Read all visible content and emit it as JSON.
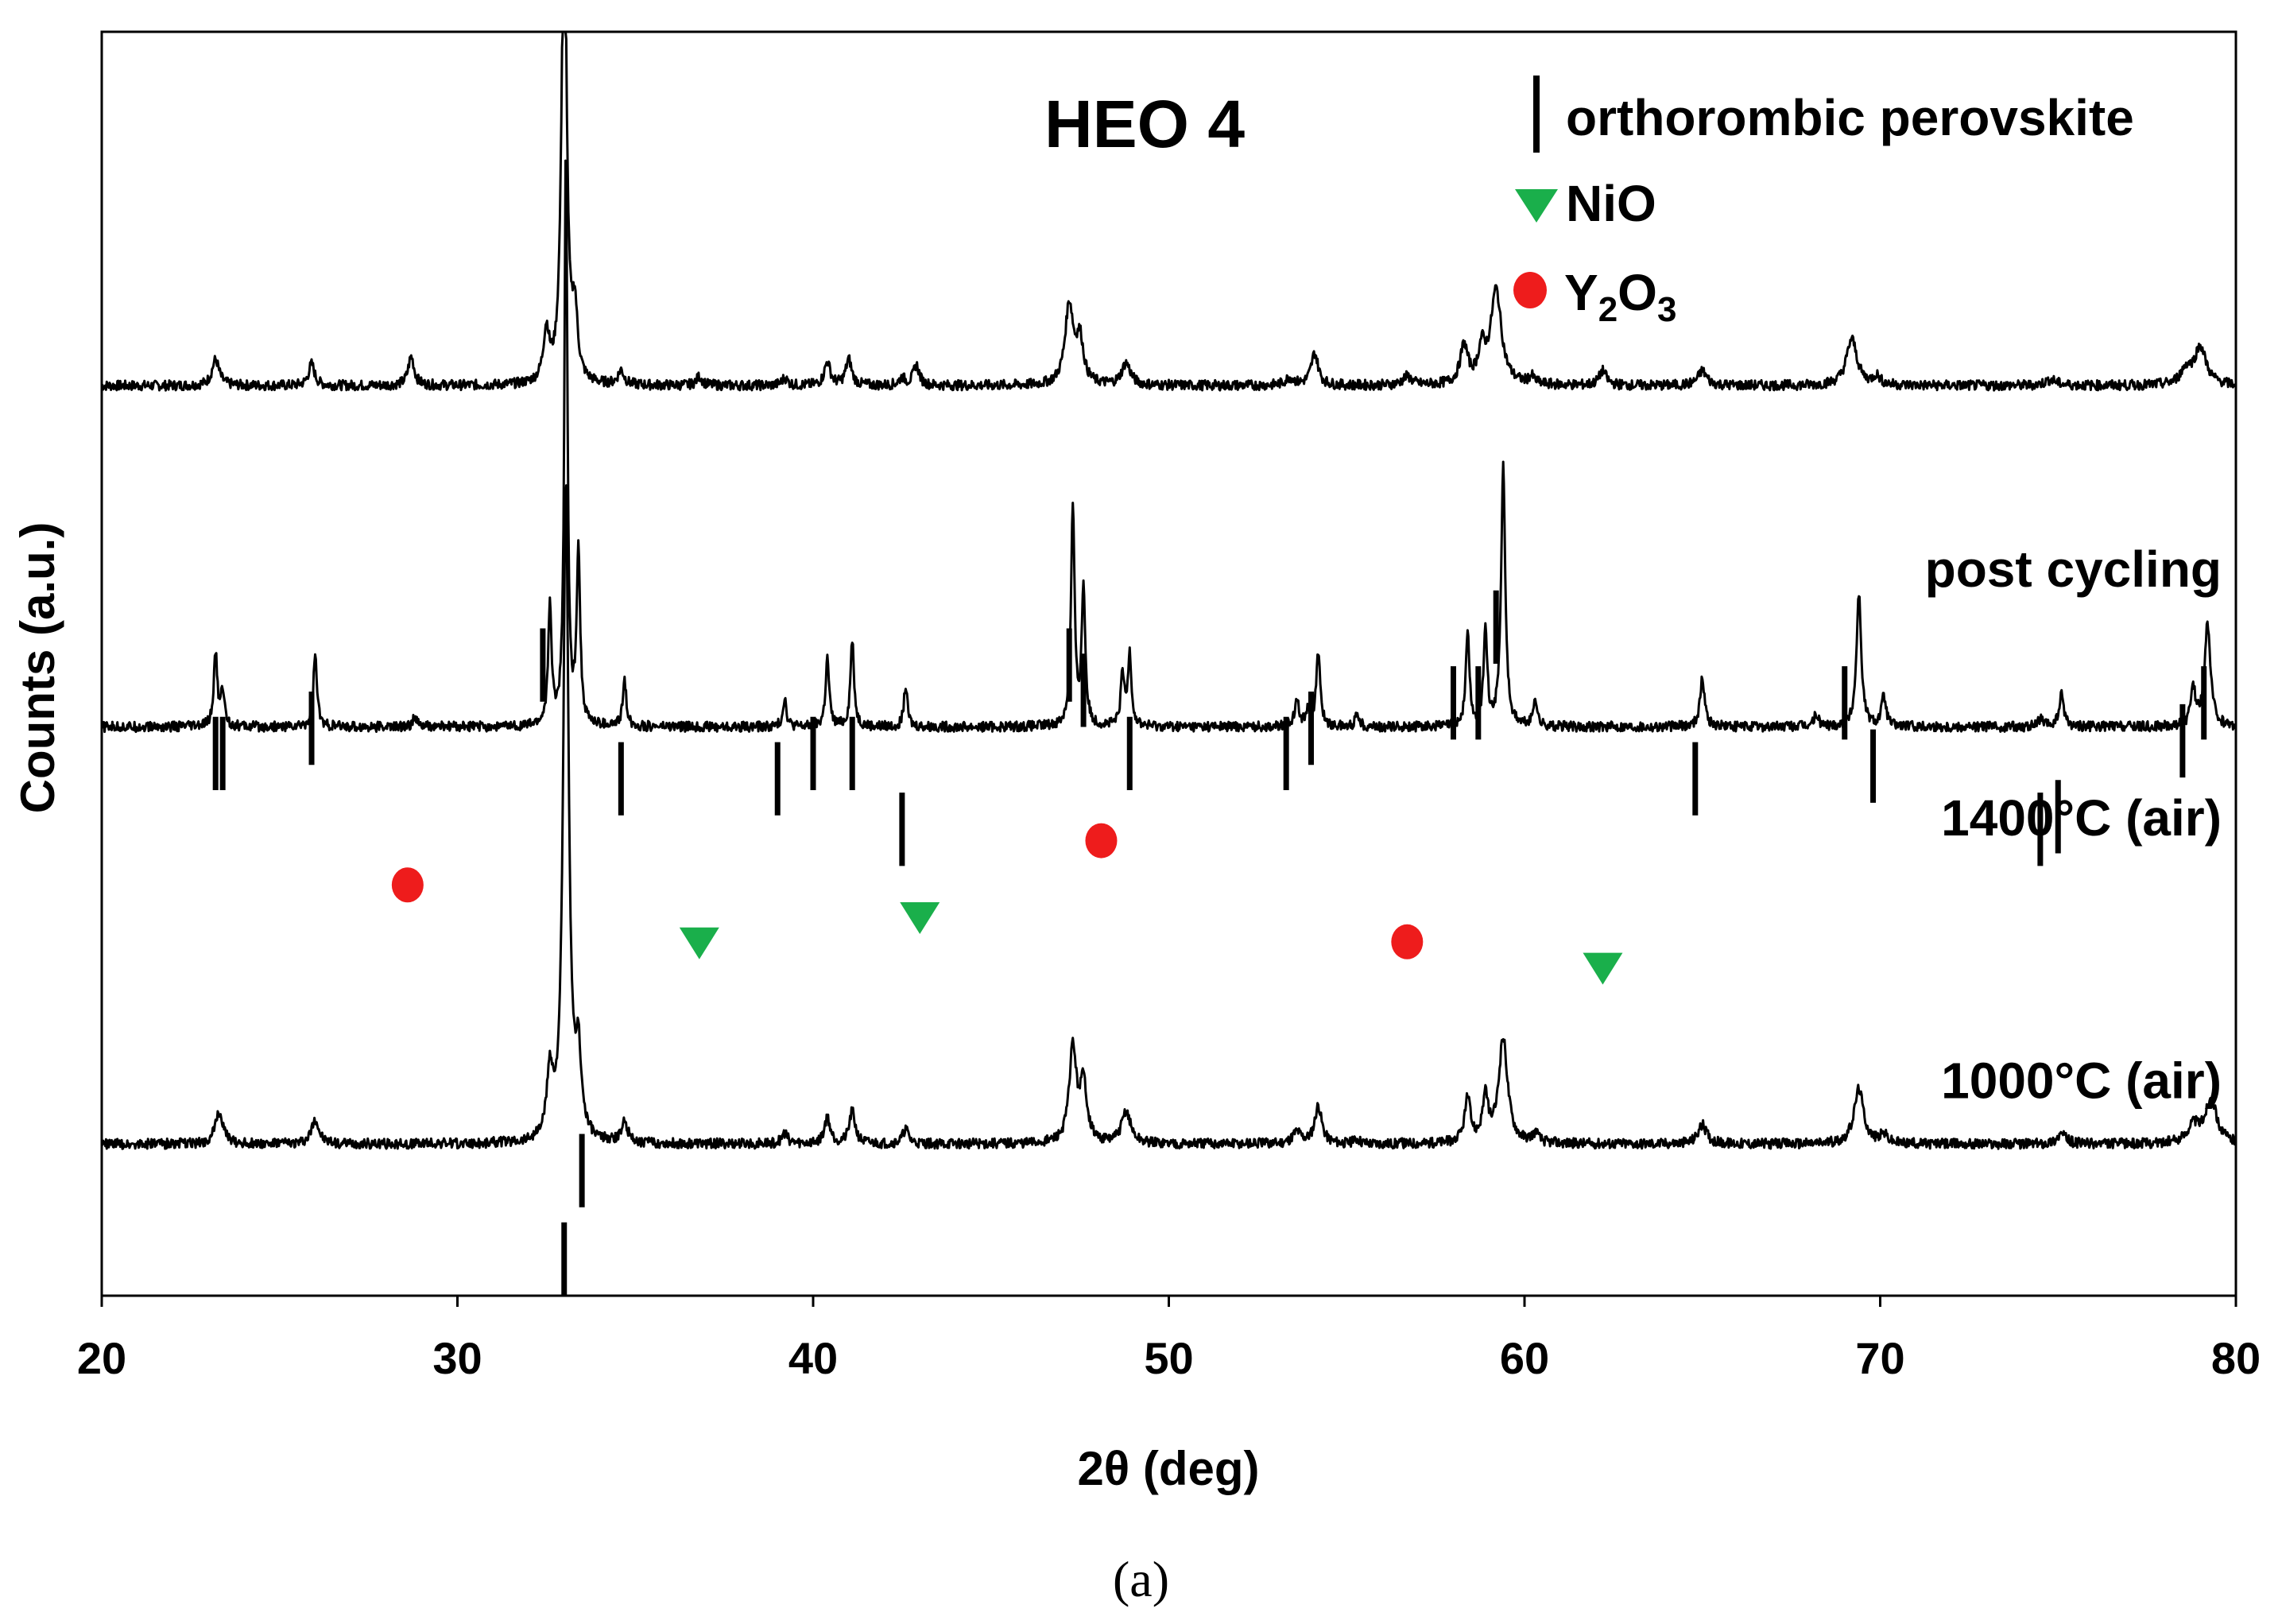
{
  "chart_data": {
    "type": "line",
    "title": "HEO 4",
    "xlabel": "2θ (deg)",
    "ylabel": "Counts (a.u.)",
    "xlim": [
      20,
      80
    ],
    "xticks": [
      20,
      30,
      40,
      50,
      60,
      70,
      80
    ],
    "caption": "(a)",
    "legend": {
      "placement": "top-right",
      "entries": [
        {
          "symbol": "bar",
          "label": "orthorombic perovskite",
          "color": "#000000"
        },
        {
          "symbol": "triangle-down",
          "label": "NiO",
          "color": "#1aaf4b"
        },
        {
          "symbol": "circle",
          "label_main": "Y",
          "label_sub1": "2",
          "label_mid": "O",
          "label_sub2": "3",
          "color": "#ee1c1c"
        }
      ]
    },
    "series": [
      {
        "name": "post cycling",
        "label": "post cycling",
        "baseline": 0.28,
        "scale": 0.115,
        "noise": 0.004,
        "peaks": [
          [
            23.2,
            0.18,
            0.12
          ],
          [
            25.9,
            0.15,
            0.1
          ],
          [
            28.7,
            0.2,
            0.1
          ],
          [
            32.5,
            0.35,
            0.1
          ],
          [
            33.0,
            3.6,
            0.08
          ],
          [
            33.3,
            0.45,
            0.09
          ],
          [
            34.6,
            0.1,
            0.1
          ],
          [
            36.8,
            0.06,
            0.1
          ],
          [
            39.2,
            0.05,
            0.1
          ],
          [
            40.4,
            0.16,
            0.1
          ],
          [
            41.0,
            0.18,
            0.1
          ],
          [
            42.5,
            0.05,
            0.1
          ],
          [
            42.9,
            0.14,
            0.1
          ],
          [
            47.2,
            0.55,
            0.14
          ],
          [
            47.5,
            0.3,
            0.12
          ],
          [
            48.8,
            0.15,
            0.15
          ],
          [
            53.4,
            0.05,
            0.15
          ],
          [
            54.1,
            0.22,
            0.12
          ],
          [
            56.7,
            0.06,
            0.15
          ],
          [
            58.3,
            0.26,
            0.13
          ],
          [
            58.8,
            0.22,
            0.12
          ],
          [
            59.2,
            0.65,
            0.18
          ],
          [
            60.2,
            0.05,
            0.1
          ],
          [
            62.2,
            0.1,
            0.12
          ],
          [
            65.0,
            0.1,
            0.15
          ],
          [
            69.2,
            0.32,
            0.18
          ],
          [
            69.9,
            0.06,
            0.12
          ],
          [
            74.8,
            0.04,
            0.2
          ],
          [
            78.6,
            0.1,
            0.18
          ],
          [
            79.0,
            0.26,
            0.2
          ]
        ]
      },
      {
        "name": "1400°C (air)",
        "label": "1400°C (air)",
        "baseline": 0.55,
        "scale": 0.115,
        "noise": 0.004,
        "peaks": [
          [
            23.2,
            0.5,
            0.06
          ],
          [
            23.4,
            0.25,
            0.06
          ],
          [
            26.0,
            0.5,
            0.06
          ],
          [
            28.8,
            0.06,
            0.08
          ],
          [
            32.6,
            0.8,
            0.06
          ],
          [
            33.05,
            4.0,
            0.05
          ],
          [
            33.4,
            1.2,
            0.06
          ],
          [
            34.7,
            0.32,
            0.06
          ],
          [
            39.2,
            0.2,
            0.06
          ],
          [
            40.4,
            0.47,
            0.06
          ],
          [
            41.1,
            0.6,
            0.06
          ],
          [
            42.6,
            0.28,
            0.06
          ],
          [
            47.3,
            1.5,
            0.06
          ],
          [
            47.6,
            0.95,
            0.06
          ],
          [
            48.7,
            0.35,
            0.06
          ],
          [
            48.9,
            0.5,
            0.06
          ],
          [
            53.6,
            0.2,
            0.07
          ],
          [
            53.9,
            0.1,
            0.07
          ],
          [
            54.2,
            0.5,
            0.07
          ],
          [
            55.3,
            0.1,
            0.06
          ],
          [
            58.4,
            0.65,
            0.06
          ],
          [
            58.9,
            0.7,
            0.06
          ],
          [
            59.4,
            1.8,
            0.07
          ],
          [
            60.3,
            0.2,
            0.06
          ],
          [
            65.0,
            0.33,
            0.08
          ],
          [
            68.2,
            0.08,
            0.08
          ],
          [
            69.4,
            0.92,
            0.08
          ],
          [
            70.1,
            0.2,
            0.08
          ],
          [
            74.5,
            0.05,
            0.08
          ],
          [
            75.1,
            0.22,
            0.08
          ],
          [
            78.8,
            0.25,
            0.08
          ],
          [
            79.2,
            0.7,
            0.1
          ]
        ]
      },
      {
        "name": "1000°C (air)",
        "label": "1000°C (air)",
        "baseline": 0.88,
        "scale": 0.115,
        "noise": 0.004,
        "peaks": [
          [
            23.3,
            0.22,
            0.13
          ],
          [
            26.0,
            0.17,
            0.12
          ],
          [
            32.6,
            0.45,
            0.1
          ],
          [
            33.05,
            4.5,
            0.09
          ],
          [
            33.4,
            0.55,
            0.1
          ],
          [
            34.7,
            0.15,
            0.1
          ],
          [
            39.2,
            0.07,
            0.1
          ],
          [
            40.4,
            0.18,
            0.1
          ],
          [
            41.1,
            0.22,
            0.1
          ],
          [
            42.6,
            0.1,
            0.1
          ],
          [
            47.3,
            0.65,
            0.12
          ],
          [
            47.6,
            0.4,
            0.12
          ],
          [
            48.8,
            0.22,
            0.15
          ],
          [
            53.6,
            0.08,
            0.15
          ],
          [
            54.2,
            0.26,
            0.12
          ],
          [
            55.3,
            0.03,
            0.1
          ],
          [
            58.4,
            0.3,
            0.1
          ],
          [
            58.9,
            0.3,
            0.1
          ],
          [
            59.4,
            0.72,
            0.15
          ],
          [
            60.3,
            0.06,
            0.12
          ],
          [
            65.0,
            0.13,
            0.15
          ],
          [
            69.4,
            0.38,
            0.16
          ],
          [
            70.1,
            0.06,
            0.12
          ],
          [
            75.1,
            0.07,
            0.15
          ],
          [
            78.8,
            0.12,
            0.2
          ],
          [
            79.3,
            0.3,
            0.2
          ]
        ]
      }
    ],
    "markers": {
      "perovskite_ticks": [
        [
          23.2,
          0.6
        ],
        [
          23.4,
          0.6
        ],
        [
          25.9,
          0.58
        ],
        [
          32.4,
          0.53
        ],
        [
          33.0,
          1.0
        ],
        [
          33.5,
          0.93
        ],
        [
          34.6,
          0.62
        ],
        [
          39.0,
          0.62
        ],
        [
          40.0,
          0.6
        ],
        [
          41.1,
          0.6
        ],
        [
          42.5,
          0.66
        ],
        [
          47.2,
          0.53
        ],
        [
          47.6,
          0.55
        ],
        [
          48.9,
          0.6
        ],
        [
          53.3,
          0.6
        ],
        [
          54.0,
          0.58
        ],
        [
          58.0,
          0.56
        ],
        [
          58.7,
          0.56
        ],
        [
          59.2,
          0.5
        ],
        [
          64.8,
          0.62
        ],
        [
          69.0,
          0.56
        ],
        [
          69.8,
          0.61
        ],
        [
          74.5,
          0.66
        ],
        [
          75.0,
          0.65
        ],
        [
          78.5,
          0.59
        ],
        [
          79.1,
          0.56
        ]
      ],
      "NiO": [
        [
          36.8,
          0.72
        ],
        [
          43.0,
          0.7
        ],
        [
          62.2,
          0.74
        ]
      ],
      "Y2O3": [
        [
          28.6,
          0.675
        ],
        [
          48.1,
          0.64
        ],
        [
          56.7,
          0.72
        ]
      ]
    }
  }
}
